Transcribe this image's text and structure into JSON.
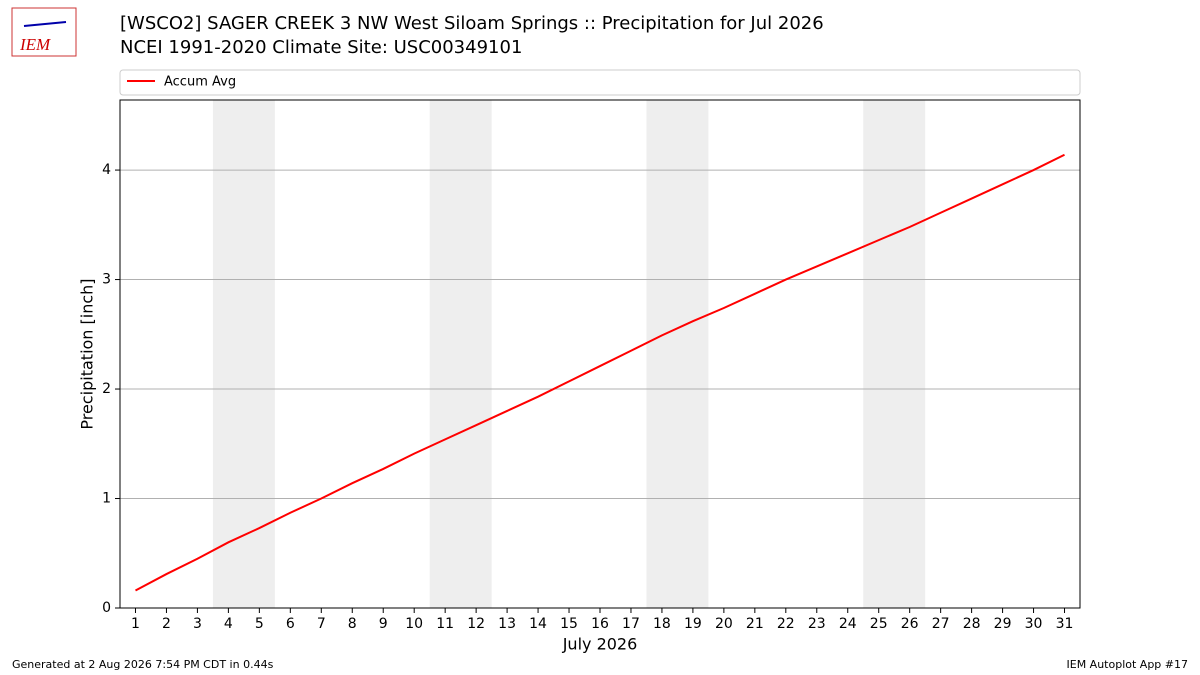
{
  "logo": "IEM",
  "footer_left": "Generated at 2 Aug 2026 7:54 PM CDT in 0.44s",
  "footer_right": "IEM Autoplot App #17",
  "chart_data": {
    "type": "line",
    "title": "[WSCO2] SAGER CREEK 3 NW West Siloam Springs :: Precipitation for Jul 2026",
    "subtitle": "NCEI 1991-2020 Climate Site: USC00349101",
    "xlabel": "July 2026",
    "ylabel": "Precipitation [inch]",
    "x": [
      1,
      2,
      3,
      4,
      5,
      6,
      7,
      8,
      9,
      10,
      11,
      12,
      13,
      14,
      15,
      16,
      17,
      18,
      19,
      20,
      21,
      22,
      23,
      24,
      25,
      26,
      27,
      28,
      29,
      30,
      31
    ],
    "series": [
      {
        "name": "Accum Avg",
        "color": "#ff0000",
        "values": [
          0.16,
          0.31,
          0.45,
          0.6,
          0.73,
          0.87,
          1.0,
          1.14,
          1.27,
          1.41,
          1.54,
          1.67,
          1.8,
          1.93,
          2.07,
          2.21,
          2.35,
          2.49,
          2.62,
          2.74,
          2.87,
          3.0,
          3.12,
          3.24,
          3.36,
          3.48,
          3.61,
          3.74,
          3.87,
          4.0,
          4.14
        ]
      }
    ],
    "shaded_spans": [
      [
        3.5,
        5.5
      ],
      [
        10.5,
        12.5
      ],
      [
        17.5,
        19.5
      ],
      [
        24.5,
        26.5
      ]
    ],
    "shade_color": "#eeeeee",
    "xlim": [
      0.5,
      31.5
    ],
    "xticks": [
      1,
      2,
      3,
      4,
      5,
      6,
      7,
      8,
      9,
      10,
      11,
      12,
      13,
      14,
      15,
      16,
      17,
      18,
      19,
      20,
      21,
      22,
      23,
      24,
      25,
      26,
      27,
      28,
      29,
      30,
      31
    ],
    "ylim": [
      0,
      4.64
    ],
    "yticks": [
      0,
      1,
      2,
      3,
      4
    ],
    "grid": true,
    "legend": "top"
  }
}
